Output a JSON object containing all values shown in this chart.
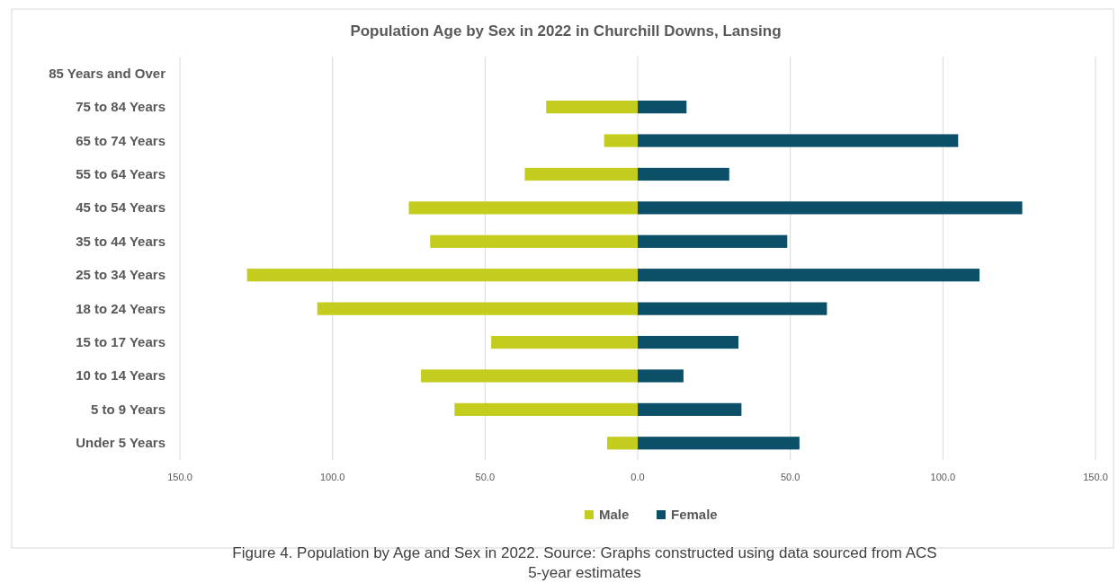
{
  "chart_data": {
    "type": "bar",
    "orientation": "horizontal",
    "stacked": true,
    "title": "Population Age by Sex in 2022 in Churchill Downs, Lansing",
    "categories": [
      "85 Years and Over",
      "75 to 84 Years",
      "65 to 74 Years",
      "55 to 64 Years",
      "45 to 54 Years",
      "35 to 44 Years",
      "25 to 34 Years",
      "18 to 24 Years",
      "15 to 17 Years",
      "10 to 14 Years",
      "5 to 9 Years",
      "Under 5 Years"
    ],
    "series": [
      {
        "name": "Male",
        "color": "#c4cc1e",
        "values": [
          0,
          -30,
          -11,
          -37,
          -75,
          -68,
          -128,
          -105,
          -48,
          -71,
          -60,
          -10
        ]
      },
      {
        "name": "Female",
        "color": "#0c4f69",
        "values": [
          0,
          16,
          105,
          30,
          126,
          49,
          112,
          62,
          33,
          15,
          34,
          53
        ]
      }
    ],
    "xlim": [
      -150,
      150
    ],
    "xticks": [
      {
        "value": -150,
        "label": "150.0"
      },
      {
        "value": -100,
        "label": "100.0"
      },
      {
        "value": -50,
        "label": "50.0"
      },
      {
        "value": 0,
        "label": "0.0"
      },
      {
        "value": 50,
        "label": "50.0"
      },
      {
        "value": 100,
        "label": "100.0"
      },
      {
        "value": 150,
        "label": "150.0"
      }
    ],
    "grid": "x",
    "legend": "bottom",
    "annotations": [
      "Figure 4. Population by Age and Sex in 2022. Source: Graphs constructed using data sourced from ACS 5-year estimates"
    ]
  }
}
